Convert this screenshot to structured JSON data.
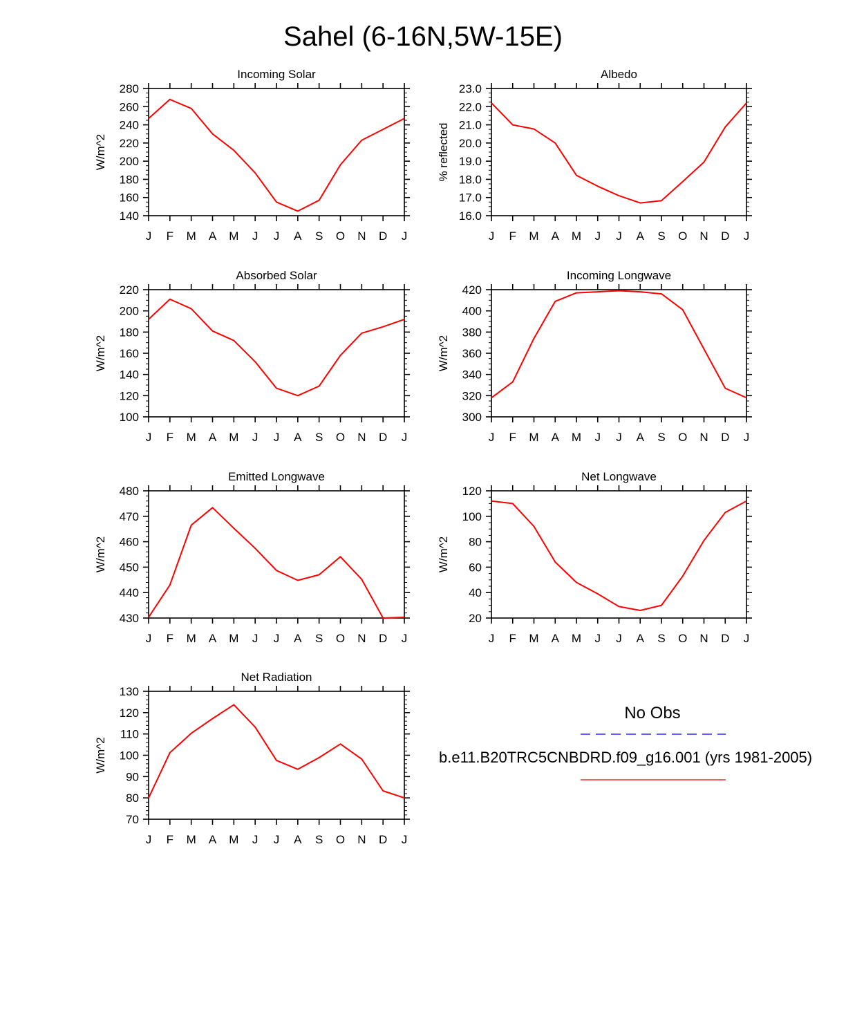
{
  "figure_title": "Sahel (6-16N,5W-15E)",
  "month_labels": [
    "J",
    "F",
    "M",
    "A",
    "M",
    "J",
    "J",
    "A",
    "S",
    "O",
    "N",
    "D",
    "J"
  ],
  "colors": {
    "model": "#ff0000",
    "obs": "#0000ff",
    "axis": "#000000"
  },
  "legend": {
    "obs_label": "No Obs",
    "model_label": "b.e11.B20TRC5CNBDRD.f09_g16.001 (yrs 1981-2005)"
  },
  "chart_data": [
    {
      "type": "line",
      "title": "Incoming Solar",
      "ylabel": "W/m^2",
      "xlabel": "",
      "categories": [
        "J",
        "F",
        "M",
        "A",
        "M",
        "J",
        "J",
        "A",
        "S",
        "O",
        "N",
        "D",
        "J"
      ],
      "ylim": [
        140,
        280
      ],
      "yticks": [
        140,
        160,
        180,
        200,
        220,
        240,
        260,
        280
      ],
      "ytick_labels": [
        "140",
        "160",
        "180",
        "200",
        "220",
        "240",
        "260",
        "280"
      ],
      "yminor": 5,
      "series": [
        {
          "name": "b.e11.B20TRC5CNBDRD.f09_g16.001 (yrs 1981-2005)",
          "values": [
            247,
            268,
            258,
            230,
            212,
            187,
            155,
            145,
            157,
            196,
            223,
            235,
            247
          ]
        }
      ]
    },
    {
      "type": "line",
      "title": "Albedo",
      "ylabel": "% reflected",
      "xlabel": "",
      "categories": [
        "J",
        "F",
        "M",
        "A",
        "M",
        "J",
        "J",
        "A",
        "S",
        "O",
        "N",
        "D",
        "J"
      ],
      "ylim": [
        16,
        23
      ],
      "yticks": [
        16,
        17,
        18,
        19,
        20,
        21,
        22,
        23
      ],
      "ytick_labels": [
        "16.0",
        "17.0",
        "18.0",
        "19.0",
        "20.0",
        "21.0",
        "22.0",
        "23.0"
      ],
      "yminor": 0.25,
      "series": [
        {
          "name": "b.e11.B20TRC5CNBDRD.f09_g16.001 (yrs 1981-2005)",
          "values": [
            22.2,
            21.0,
            20.77,
            20.0,
            18.22,
            17.62,
            17.1,
            16.7,
            16.83,
            17.88,
            18.95,
            20.88,
            22.2
          ]
        }
      ]
    },
    {
      "type": "line",
      "title": "Absorbed Solar",
      "ylabel": "W/m^2",
      "xlabel": "",
      "categories": [
        "J",
        "F",
        "M",
        "A",
        "M",
        "J",
        "J",
        "A",
        "S",
        "O",
        "N",
        "D",
        "J"
      ],
      "ylim": [
        100,
        220
      ],
      "yticks": [
        100,
        120,
        140,
        160,
        180,
        200,
        220
      ],
      "ytick_labels": [
        "100",
        "120",
        "140",
        "160",
        "180",
        "200",
        "220"
      ],
      "yminor": 5,
      "series": [
        {
          "name": "b.e11.B20TRC5CNBDRD.f09_g16.001 (yrs 1981-2005)",
          "values": [
            192,
            211,
            202,
            181,
            172,
            152,
            127,
            120,
            129,
            158,
            179,
            185,
            192
          ]
        }
      ]
    },
    {
      "type": "line",
      "title": "Incoming Longwave",
      "ylabel": "W/m^2",
      "xlabel": "",
      "categories": [
        "J",
        "F",
        "M",
        "A",
        "M",
        "J",
        "J",
        "A",
        "S",
        "O",
        "N",
        "D",
        "J"
      ],
      "ylim": [
        300,
        420
      ],
      "yticks": [
        300,
        320,
        340,
        360,
        380,
        400,
        420
      ],
      "ytick_labels": [
        "300",
        "320",
        "340",
        "360",
        "380",
        "400",
        "420"
      ],
      "yminor": 5,
      "series": [
        {
          "name": "b.e11.B20TRC5CNBDRD.f09_g16.001 (yrs 1981-2005)",
          "values": [
            318,
            333,
            374,
            409,
            417,
            418,
            419,
            418,
            416,
            401,
            364,
            327,
            318
          ]
        }
      ]
    },
    {
      "type": "line",
      "title": "Emitted Longwave",
      "ylabel": "W/m^2",
      "xlabel": "",
      "categories": [
        "J",
        "F",
        "M",
        "A",
        "M",
        "J",
        "J",
        "A",
        "S",
        "O",
        "N",
        "D",
        "J"
      ],
      "ylim": [
        430,
        480
      ],
      "yticks": [
        430,
        440,
        450,
        460,
        470,
        480
      ],
      "ytick_labels": [
        "430",
        "440",
        "450",
        "460",
        "470",
        "480"
      ],
      "yminor": 2,
      "series": [
        {
          "name": "b.e11.B20TRC5CNBDRD.f09_g16.001 (yrs 1981-2005)",
          "values": [
            430.3,
            443.0,
            466.5,
            473.4,
            465.3,
            457.4,
            448.7,
            444.8,
            447.0,
            454.1,
            445.2,
            430.0,
            430.3
          ]
        }
      ]
    },
    {
      "type": "line",
      "title": "Net Longwave",
      "ylabel": "W/m^2",
      "xlabel": "",
      "categories": [
        "J",
        "F",
        "M",
        "A",
        "M",
        "J",
        "J",
        "A",
        "S",
        "O",
        "N",
        "D",
        "J"
      ],
      "ylim": [
        20,
        120
      ],
      "yticks": [
        20,
        40,
        60,
        80,
        100,
        120
      ],
      "ytick_labels": [
        "20",
        "40",
        "60",
        "80",
        "100",
        "120"
      ],
      "yminor": 5,
      "series": [
        {
          "name": "b.e11.B20TRC5CNBDRD.f09_g16.001 (yrs 1981-2005)",
          "values": [
            112,
            110,
            92,
            64,
            48,
            39,
            29,
            26,
            30,
            53,
            81,
            103,
            112
          ]
        }
      ]
    },
    {
      "type": "line",
      "title": "Net Radiation",
      "ylabel": "W/m^2",
      "xlabel": "",
      "categories": [
        "J",
        "F",
        "M",
        "A",
        "M",
        "J",
        "J",
        "A",
        "S",
        "O",
        "N",
        "D",
        "J"
      ],
      "ylim": [
        70,
        130
      ],
      "yticks": [
        70,
        80,
        90,
        100,
        110,
        120,
        130
      ],
      "ytick_labels": [
        "70",
        "80",
        "90",
        "100",
        "110",
        "120",
        "130"
      ],
      "yminor": 2,
      "series": [
        {
          "name": "b.e11.B20TRC5CNBDRD.f09_g16.001 (yrs 1981-2005)",
          "values": [
            80,
            101.2,
            110.3,
            117.2,
            123.7,
            113.2,
            97.6,
            93.4,
            98.9,
            105.3,
            98.2,
            83.3,
            80
          ]
        }
      ]
    }
  ]
}
